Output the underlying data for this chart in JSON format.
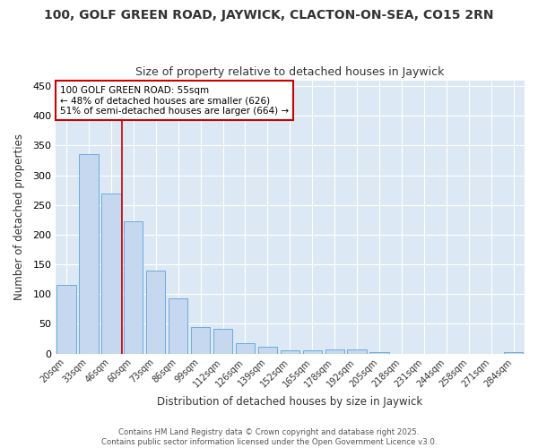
{
  "title": "100, GOLF GREEN ROAD, JAYWICK, CLACTON-ON-SEA, CO15 2RN",
  "subtitle": "Size of property relative to detached houses in Jaywick",
  "xlabel": "Distribution of detached houses by size in Jaywick",
  "ylabel": "Number of detached properties",
  "categories": [
    "20sqm",
    "33sqm",
    "46sqm",
    "60sqm",
    "73sqm",
    "86sqm",
    "99sqm",
    "112sqm",
    "126sqm",
    "139sqm",
    "152sqm",
    "165sqm",
    "178sqm",
    "192sqm",
    "205sqm",
    "218sqm",
    "231sqm",
    "244sqm",
    "258sqm",
    "271sqm",
    "284sqm"
  ],
  "values": [
    116,
    335,
    270,
    223,
    140,
    93,
    45,
    41,
    18,
    11,
    6,
    5,
    7,
    7,
    3,
    0,
    0,
    0,
    0,
    0,
    3
  ],
  "bar_color": "#c5d8f0",
  "bar_edge_color": "#6aabde",
  "plot_background_color": "#dce9f5",
  "fig_background_color": "#ffffff",
  "grid_color": "#ffffff",
  "red_line_x": 2.5,
  "annotation_text": "100 GOLF GREEN ROAD: 55sqm\n← 48% of detached houses are smaller (626)\n51% of semi-detached houses are larger (664) →",
  "annotation_box_facecolor": "#ffffff",
  "annotation_box_edgecolor": "#cc0000",
  "ylim": [
    0,
    460
  ],
  "yticks": [
    0,
    50,
    100,
    150,
    200,
    250,
    300,
    350,
    400,
    450
  ],
  "footer": "Contains HM Land Registry data © Crown copyright and database right 2025.\nContains public sector information licensed under the Open Government Licence v3.0."
}
